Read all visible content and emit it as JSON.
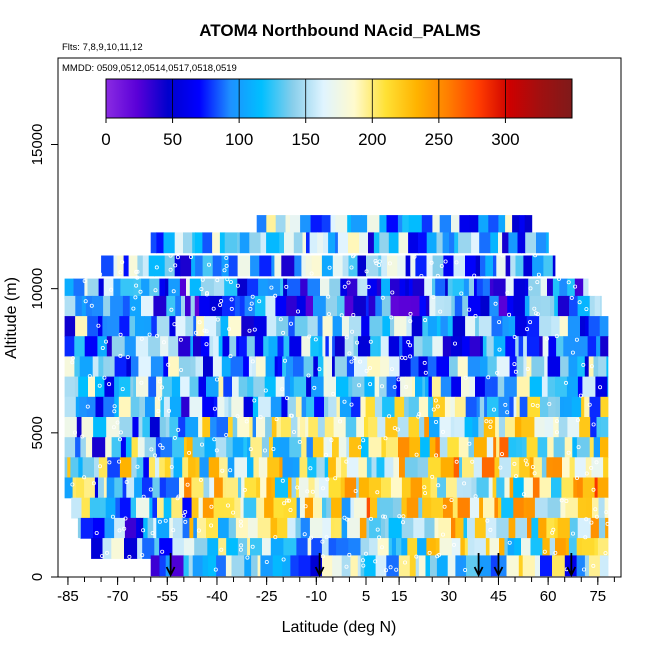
{
  "chart_data": {
    "type": "heatmap",
    "title": "ATOM4 Northbound NAcid_PALMS",
    "flights_note": "Flts: 7,8,9,10,11,12",
    "dates_note": "MMDD: 0509,0512,0514,0517,0518,0519",
    "xlabel": "Latitude (deg N)",
    "ylabel": "Altitude (m)",
    "xlim": [
      -88,
      82
    ],
    "ylim": [
      0,
      18000
    ],
    "x_ticks": [
      -85,
      -70,
      -55,
      -40,
      -25,
      -10,
      5,
      15,
      30,
      45,
      60,
      75
    ],
    "y_ticks": [
      0,
      5000,
      10000,
      15000
    ],
    "colorbar": {
      "min": 0,
      "max": 350,
      "ticks": [
        0,
        50,
        100,
        150,
        200,
        250,
        300
      ],
      "colors": [
        "#8a2be2",
        "#5a00d8",
        "#0000cd",
        "#0000ff",
        "#1e90ff",
        "#00bfff",
        "#87ceeb",
        "#e0f4ff",
        "#fffacd",
        "#ffe135",
        "#ffb300",
        "#ff7f00",
        "#ff3c00",
        "#cd0000",
        "#a01010",
        "#7f1a1a"
      ]
    },
    "arrows_latitude": [
      -54,
      -9,
      39,
      45,
      67
    ],
    "altitude_bins": [
      {
        "alt": 12200,
        "lat_range": [
          -28,
          55
        ],
        "mean": 120
      },
      {
        "alt": 11600,
        "lat_range": [
          -60,
          60
        ],
        "mean": 115
      },
      {
        "alt": 10800,
        "lat_range": [
          -75,
          62
        ],
        "mean": 110
      },
      {
        "alt": 10000,
        "lat_range": [
          -86,
          72
        ],
        "mean": 100
      },
      {
        "alt": 9400,
        "lat_range": [
          -86,
          76
        ],
        "mean": 95
      },
      {
        "alt": 8700,
        "lat_range": [
          -86,
          78
        ],
        "mean": 115
      },
      {
        "alt": 8000,
        "lat_range": [
          -86,
          78
        ],
        "mean": 110
      },
      {
        "alt": 7300,
        "lat_range": [
          -86,
          78
        ],
        "mean": 120
      },
      {
        "alt": 6600,
        "lat_range": [
          -86,
          78
        ],
        "mean": 125
      },
      {
        "alt": 5900,
        "lat_range": [
          -86,
          78
        ],
        "mean": 130
      },
      {
        "alt": 5200,
        "lat_range": [
          -86,
          78
        ],
        "mean": 150
      },
      {
        "alt": 4500,
        "lat_range": [
          -86,
          78
        ],
        "mean": 160
      },
      {
        "alt": 3800,
        "lat_range": [
          -86,
          78
        ],
        "mean": 170
      },
      {
        "alt": 3100,
        "lat_range": [
          -86,
          78
        ],
        "mean": 180
      },
      {
        "alt": 2400,
        "lat_range": [
          -84,
          78
        ],
        "mean": 170
      },
      {
        "alt": 1700,
        "lat_range": [
          -82,
          78
        ],
        "mean": 160
      },
      {
        "alt": 1000,
        "lat_range": [
          -78,
          78
        ],
        "mean": 140
      },
      {
        "alt": 400,
        "lat_range": [
          -60,
          78
        ],
        "mean": 120
      }
    ]
  }
}
